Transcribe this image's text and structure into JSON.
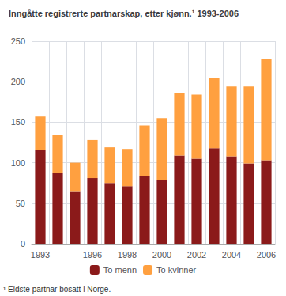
{
  "chart_data": {
    "type": "bar",
    "title": "Inngåtte registrerte partnarskap, etter kjønn.¹ 1993-2006",
    "annotations": [
      "¹ Eldste partnar bosatt i Norge."
    ],
    "categories": [
      "1993",
      null,
      null,
      "1996",
      null,
      "1998",
      null,
      "2000",
      null,
      "2002",
      null,
      "2004",
      null,
      "2006"
    ],
    "series": [
      {
        "name": "To menn",
        "color": "#8B1A1A",
        "values": [
          116,
          87,
          65,
          81,
          75,
          71,
          83,
          79,
          109,
          105,
          118,
          108,
          99,
          103
        ]
      },
      {
        "name": "To kvinner",
        "color": "#FFA040",
        "values": [
          41,
          47,
          35,
          47,
          44,
          46,
          63,
          76,
          77,
          79,
          87,
          86,
          95,
          125
        ]
      }
    ],
    "stacked": true,
    "ylim": [
      0,
      250
    ],
    "yticks": [
      0,
      50,
      100,
      150,
      200,
      250
    ],
    "grid": true,
    "legend": "bottom"
  }
}
